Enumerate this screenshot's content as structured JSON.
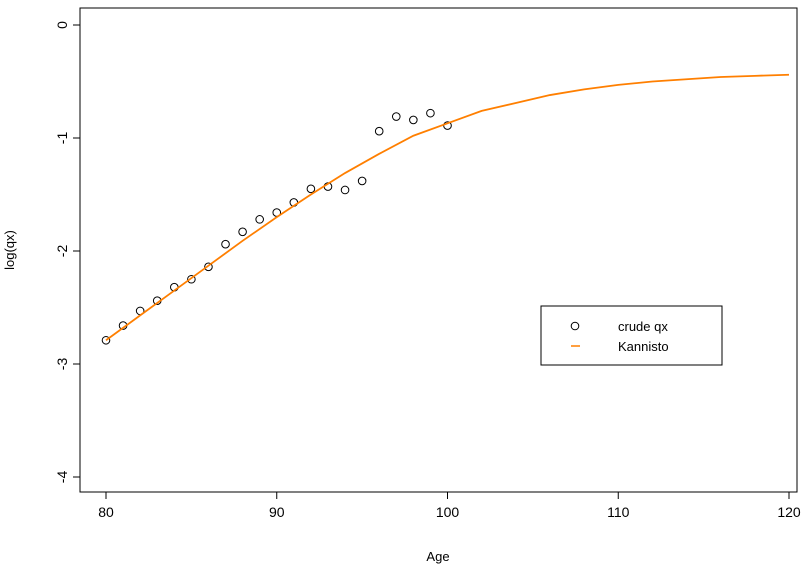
{
  "chart_data": {
    "type": "scatter",
    "xlabel": "Age",
    "ylabel": "log(qx)",
    "xlim": [
      80,
      120
    ],
    "ylim": [
      -4,
      0
    ],
    "xticks": [
      80,
      90,
      100,
      110,
      120
    ],
    "yticks": [
      0,
      -1,
      -2,
      -3,
      -4
    ],
    "grid": false,
    "legend_position": "right",
    "series": [
      {
        "name": "crude qx",
        "kind": "points",
        "marker": "open-circle",
        "color": "#000000",
        "x": [
          80,
          81,
          82,
          83,
          84,
          85,
          86,
          87,
          88,
          89,
          90,
          91,
          92,
          93,
          94,
          95,
          96,
          97,
          98,
          99,
          100
        ],
        "y": [
          -2.79,
          -2.66,
          -2.53,
          -2.44,
          -2.32,
          -2.25,
          -2.14,
          -1.94,
          -1.83,
          -1.72,
          -1.66,
          -1.57,
          -1.45,
          -1.43,
          -1.46,
          -1.38,
          -0.94,
          -0.81,
          -0.84,
          -0.78,
          -0.89
        ]
      },
      {
        "name": "Kannisto",
        "kind": "line",
        "color": "#ff7f00",
        "x": [
          80,
          82,
          84,
          86,
          88,
          90,
          92,
          94,
          96,
          98,
          100,
          102,
          104,
          106,
          108,
          110,
          112,
          114,
          116,
          118,
          120
        ],
        "y": [
          -2.79,
          -2.57,
          -2.35,
          -2.13,
          -1.91,
          -1.7,
          -1.5,
          -1.31,
          -1.14,
          -0.98,
          -0.87,
          -0.76,
          -0.69,
          -0.62,
          -0.57,
          -0.53,
          -0.5,
          -0.48,
          -0.46,
          -0.45,
          -0.44
        ]
      }
    ]
  }
}
